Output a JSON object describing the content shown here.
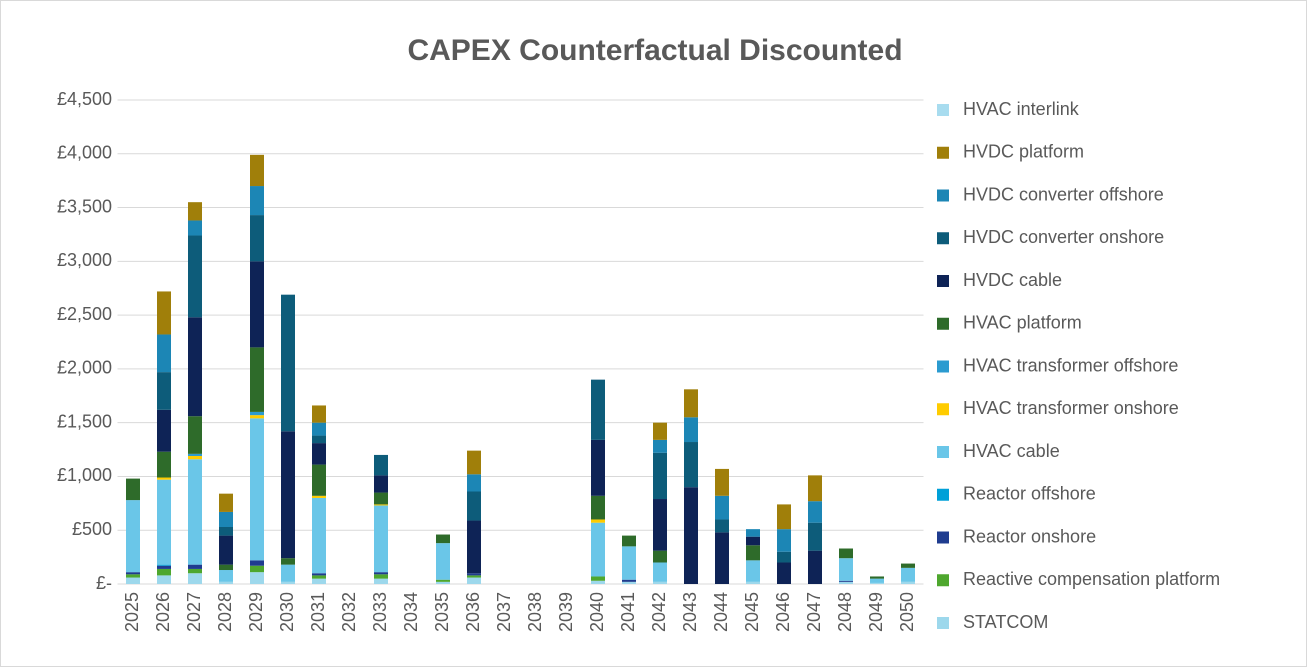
{
  "chart_data": {
    "type": "stacked_bar",
    "title": "CAPEX Counterfactual Discounted",
    "categories": [
      "2025",
      "2026",
      "2027",
      "2028",
      "2029",
      "2030",
      "2031",
      "2032",
      "2033",
      "2034",
      "2035",
      "2036",
      "2037",
      "2038",
      "2039",
      "2040",
      "2041",
      "2042",
      "2043",
      "2044",
      "2045",
      "2046",
      "2047",
      "2048",
      "2049",
      "2050"
    ],
    "series": [
      {
        "name": "STATCOM",
        "color": "#9dd8ec",
        "values": [
          60,
          80,
          100,
          20,
          110,
          20,
          50,
          0,
          50,
          0,
          20,
          60,
          0,
          0,
          0,
          30,
          20,
          20,
          0,
          0,
          20,
          0,
          0,
          20,
          10,
          20
        ]
      },
      {
        "name": "Reactive compensation platform",
        "color": "#4ea72e",
        "values": [
          30,
          60,
          40,
          0,
          60,
          0,
          30,
          0,
          40,
          0,
          20,
          20,
          0,
          0,
          0,
          40,
          0,
          0,
          0,
          0,
          0,
          0,
          0,
          0,
          0,
          0
        ]
      },
      {
        "name": "Reactor onshore",
        "color": "#1f3c8f",
        "values": [
          20,
          30,
          40,
          0,
          50,
          0,
          20,
          0,
          20,
          0,
          0,
          20,
          0,
          0,
          0,
          0,
          20,
          0,
          0,
          0,
          0,
          0,
          0,
          10,
          0,
          0
        ]
      },
      {
        "name": "Reactor offshore",
        "color": "#00a0d8",
        "values": [
          0,
          10,
          0,
          0,
          0,
          0,
          0,
          0,
          0,
          0,
          0,
          0,
          0,
          0,
          0,
          0,
          0,
          0,
          0,
          0,
          0,
          0,
          0,
          0,
          0,
          0
        ]
      },
      {
        "name": "HVAC cable",
        "color": "#6ac6e8",
        "values": [
          670,
          790,
          980,
          110,
          1320,
          160,
          700,
          0,
          620,
          0,
          340,
          0,
          0,
          0,
          0,
          500,
          310,
          180,
          0,
          0,
          200,
          0,
          0,
          210,
          40,
          130
        ]
      },
      {
        "name": "HVAC transformer onshore",
        "color": "#ffcc00",
        "values": [
          0,
          20,
          30,
          0,
          30,
          0,
          20,
          0,
          10,
          0,
          0,
          0,
          0,
          0,
          0,
          30,
          0,
          0,
          0,
          0,
          0,
          0,
          0,
          0,
          0,
          0
        ]
      },
      {
        "name": "HVAC transformer offshore",
        "color": "#2b9bd0",
        "values": [
          0,
          0,
          20,
          0,
          30,
          0,
          0,
          0,
          0,
          0,
          0,
          0,
          0,
          0,
          0,
          0,
          0,
          0,
          0,
          0,
          0,
          0,
          0,
          0,
          0,
          0
        ]
      },
      {
        "name": "HVAC platform",
        "color": "#2e6b2a",
        "values": [
          200,
          240,
          350,
          50,
          600,
          60,
          290,
          0,
          110,
          0,
          80,
          0,
          0,
          0,
          0,
          220,
          100,
          110,
          0,
          0,
          140,
          0,
          0,
          90,
          20,
          40
        ]
      },
      {
        "name": "HVDC cable",
        "color": "#0e2356",
        "values": [
          0,
          390,
          920,
          270,
          800,
          1180,
          200,
          0,
          160,
          0,
          0,
          490,
          0,
          0,
          0,
          520,
          0,
          480,
          900,
          480,
          80,
          200,
          310,
          0,
          0,
          0
        ]
      },
      {
        "name": "HVDC converter onshore",
        "color": "#0d5c7a",
        "values": [
          0,
          350,
          760,
          80,
          430,
          1270,
          70,
          0,
          190,
          0,
          0,
          270,
          0,
          0,
          0,
          560,
          0,
          430,
          420,
          120,
          0,
          100,
          260,
          0,
          0,
          0
        ]
      },
      {
        "name": "HVDC converter offshore",
        "color": "#1c86b5",
        "values": [
          0,
          350,
          140,
          140,
          270,
          0,
          120,
          0,
          0,
          0,
          0,
          160,
          0,
          0,
          0,
          0,
          0,
          120,
          230,
          220,
          70,
          210,
          200,
          0,
          0,
          0
        ]
      },
      {
        "name": "HVDC platform",
        "color": "#a07f0a",
        "values": [
          0,
          400,
          170,
          170,
          290,
          0,
          160,
          0,
          0,
          0,
          0,
          220,
          0,
          0,
          0,
          0,
          0,
          160,
          260,
          250,
          0,
          230,
          240,
          0,
          0,
          0
        ]
      },
      {
        "name": "HVAC interlink",
        "color": "#a8dcef",
        "values": [
          0,
          0,
          0,
          0,
          0,
          0,
          0,
          0,
          0,
          0,
          0,
          0,
          0,
          0,
          0,
          0,
          0,
          0,
          0,
          0,
          0,
          0,
          0,
          0,
          0,
          0
        ]
      }
    ],
    "ylim": [
      0,
      4500
    ],
    "yticks": [
      {
        "value": 0,
        "label": "£-"
      },
      {
        "value": 500,
        "label": "£500"
      },
      {
        "value": 1000,
        "label": "£1,000"
      },
      {
        "value": 1500,
        "label": "£1,500"
      },
      {
        "value": 2000,
        "label": "£2,000"
      },
      {
        "value": 2500,
        "label": "£2,500"
      },
      {
        "value": 3000,
        "label": "£3,000"
      },
      {
        "value": 3500,
        "label": "£3,500"
      },
      {
        "value": 4000,
        "label": "£4,000"
      },
      {
        "value": 4500,
        "label": "£4,500"
      }
    ],
    "grid": true,
    "legend": "right"
  }
}
